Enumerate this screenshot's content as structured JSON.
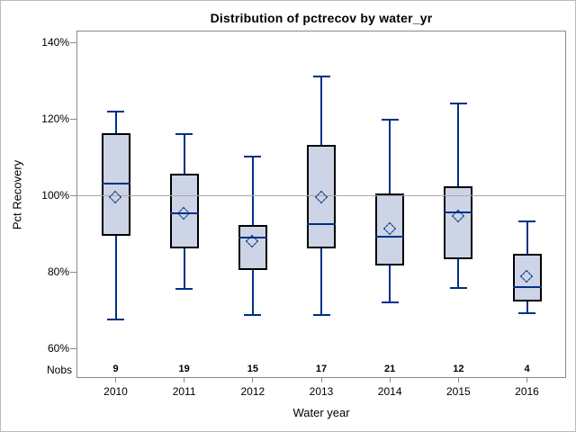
{
  "chart_data": {
    "type": "box",
    "title": "Distribution of pctrecov by water_yr",
    "xlabel": "Water year",
    "ylabel": "Pct Recovery",
    "nobs_label": "Nobs",
    "categories": [
      "2010",
      "2011",
      "2012",
      "2013",
      "2014",
      "2015",
      "2016"
    ],
    "nobs": [
      "9",
      "19",
      "15",
      "17",
      "21",
      "12",
      "4"
    ],
    "y_ticks": [
      {
        "label": "140%",
        "value": 140
      },
      {
        "label": "120%",
        "value": 120
      },
      {
        "label": "100%",
        "value": 100
      },
      {
        "label": "80%",
        "value": 80
      },
      {
        "label": "60%",
        "value": 60
      }
    ],
    "ylim": [
      52.2,
      143.1
    ],
    "reference_line": 100,
    "grid": "reference-line-only",
    "legend": "none",
    "series": [
      {
        "category": "2010",
        "n": 9,
        "min": 67.5,
        "q1": 89.5,
        "median": 103.1,
        "mean": 99.4,
        "q3": 116.2,
        "max": 122.0
      },
      {
        "category": "2011",
        "n": 19,
        "min": 75.5,
        "q1": 86.0,
        "median": 95.4,
        "mean": 95.2,
        "q3": 105.6,
        "max": 116.0
      },
      {
        "category": "2012",
        "n": 15,
        "min": 68.8,
        "q1": 80.4,
        "median": 89.0,
        "mean": 87.9,
        "q3": 92.2,
        "max": 110.2
      },
      {
        "category": "2013",
        "n": 17,
        "min": 68.6,
        "q1": 86.0,
        "median": 92.4,
        "mean": 99.3,
        "q3": 113.2,
        "max": 131.0
      },
      {
        "category": "2014",
        "n": 21,
        "min": 72.0,
        "q1": 81.6,
        "median": 89.1,
        "mean": 91.2,
        "q3": 100.4,
        "max": 119.8
      },
      {
        "category": "2015",
        "n": 12,
        "min": 75.7,
        "q1": 83.4,
        "median": 95.6,
        "mean": 94.5,
        "q3": 102.4,
        "max": 124.0
      },
      {
        "category": "2016",
        "n": 4,
        "min": 69.2,
        "q1": 72.3,
        "median": 76.1,
        "mean": 78.8,
        "q3": 84.8,
        "max": 93.2
      }
    ],
    "colors": {
      "box_fill": "#ccd4e6",
      "box_border": "#000000",
      "whisker_blue": "#003087",
      "median_blue": "#003087",
      "mean_marker_blue": "#003087",
      "reference_line_gray": "#a8a8a8",
      "axis_gray": "#898989",
      "text_black": "#000000",
      "background": "#ffffff"
    }
  }
}
